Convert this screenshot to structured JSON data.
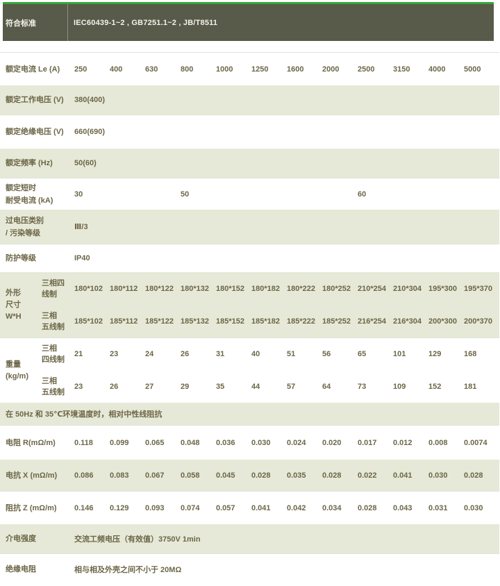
{
  "colors": {
    "accent_green": "#2fa836",
    "header_bg": "#585a4a",
    "row_green": "#e6e9d7",
    "text": "#6c6647"
  },
  "header": {
    "label": "符合标准",
    "value": "IEC60439-1~2 , GB7251.1~2 , JB/T8511"
  },
  "rated_current": {
    "label": "额定电流 Le (A)",
    "values": [
      "250",
      "400",
      "630",
      "800",
      "1000",
      "1250",
      "1600",
      "2000",
      "2500",
      "3150",
      "4000",
      "5000"
    ]
  },
  "working_voltage": {
    "label": "额定工作电压 (V)",
    "value": "380(400)"
  },
  "insulation_voltage": {
    "label": "额定绝缘电压 (V)",
    "value": "660(690)"
  },
  "frequency": {
    "label": "额定频率 (Hz)",
    "value": "50(60)"
  },
  "withstand_current": {
    "label_line1": "额定短时",
    "label_line2": "耐受电流 (kA)",
    "v1": "30",
    "v2": "50",
    "v3": "60"
  },
  "overvoltage": {
    "label_line1": "过电压类别",
    "label_line2": "/ 污染等级",
    "value": "Ⅲ/3"
  },
  "protection": {
    "label": "防护等级",
    "value": "IP40"
  },
  "dimensions": {
    "label_lines": [
      "外形",
      "尺寸",
      "W*H"
    ],
    "four_wire": {
      "sub_line1": "三相四",
      "sub_line2": "线制",
      "values": [
        "180*102",
        "180*112",
        "180*122",
        "180*132",
        "180*152",
        "180*182",
        "180*222",
        "180*252",
        "210*254",
        "210*304",
        "195*300",
        "195*370"
      ]
    },
    "five_wire": {
      "sub_line1": "三相",
      "sub_line2": "五线制",
      "values": [
        "185*102",
        "185*112",
        "185*122",
        "185*132",
        "185*152",
        "185*182",
        "185*222",
        "185*252",
        "216*254",
        "216*304",
        "200*300",
        "200*370"
      ]
    }
  },
  "weight": {
    "label_lines": [
      "重量",
      "(kg/m)"
    ],
    "four_wire": {
      "sub_line1": "三相",
      "sub_line2": "四线制",
      "values": [
        "21",
        "23",
        "24",
        "26",
        "31",
        "40",
        "51",
        "56",
        "65",
        "101",
        "129",
        "168"
      ]
    },
    "five_wire": {
      "sub_line1": "三相",
      "sub_line2": "五线制",
      "values": [
        "23",
        "26",
        "27",
        "29",
        "35",
        "44",
        "57",
        "64",
        "73",
        "109",
        "152",
        "181"
      ]
    }
  },
  "impedance_note": "在 50Hz 和 35℃环境温度时，相对中性线阻抗",
  "resistance": {
    "label": "电阻 R(mΩ/m)",
    "values": [
      "0.118",
      "0.099",
      "0.065",
      "0.048",
      "0.036",
      "0.030",
      "0.024",
      "0.020",
      "0.017",
      "0.012",
      "0.008",
      "0.0074"
    ]
  },
  "reactance": {
    "label": "电抗 X (mΩ/m)",
    "values": [
      "0.086",
      "0.083",
      "0.067",
      "0.058",
      "0.045",
      "0.028",
      "0.035",
      "0.028",
      "0.022",
      "0.041",
      "0.030",
      "0.028"
    ]
  },
  "impedance": {
    "label": "阻抗 Z (mΩ/m)",
    "values": [
      "0.146",
      "0.129",
      "0.093",
      "0.074",
      "0.057",
      "0.041",
      "0.042",
      "0.034",
      "0.028",
      "0.043",
      "0.031",
      "0.030"
    ]
  },
  "dielectric": {
    "label": "介电强度",
    "value": "交流工频电压（有效值）3750V 1min"
  },
  "insulation_resistance": {
    "label": "绝缘电阻",
    "value": "相与相及外壳之间不小于 20MΩ"
  }
}
